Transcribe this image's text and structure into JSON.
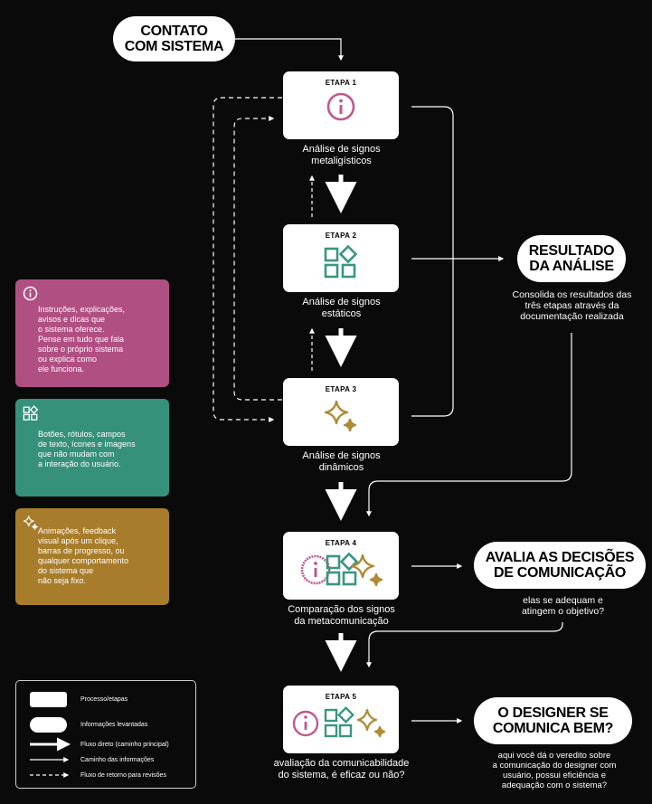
{
  "start": {
    "label": "CONTATO\nCOM SISTEMA"
  },
  "stages": [
    {
      "title": "ETAPA 1",
      "caption": "Análise de signos\nmetaligísticos",
      "icon": "info-icon"
    },
    {
      "title": "ETAPA 2",
      "caption": "Análise de signos\nestáticos",
      "icon": "shapes-icon"
    },
    {
      "title": "ETAPA 3",
      "caption": "Análise de signos\ndinâmicos",
      "icon": "sparkle-icon"
    },
    {
      "title": "ETAPA 4",
      "caption": "Comparação dos signos\nda metacomunicação",
      "icon": "combined-icons"
    },
    {
      "title": "ETAPA 5",
      "caption": "avaliação da  comunicabilidade\ndo sistema, é eficaz ou não?",
      "icon": "combined-icons"
    }
  ],
  "outcomes": {
    "resultado": {
      "label": "RESULTADO\nDA ANÁLISE",
      "note": "Consolida os resultados das\ntrês etapas através da\ndocumentação realizada"
    },
    "avalia": {
      "label": "AVALIA AS DECISÕES\nDE COMUNICAÇÃO",
      "note": "elas se adequam e\natingem o objetivo?"
    },
    "designer": {
      "label": "O DESIGNER SE\nCOMUNICA BEM?",
      "note": "aqui você dá o veredito sobre\na comunicação do designer com\nusuário, possui eficiência e\nadequação com o sistema?"
    }
  },
  "side_cards": [
    {
      "color": "#b04f82",
      "icon": "info-icon",
      "text": "Instruções, explicações,\navisos e dicas que\no sistema oferece.\nPense em tudo que fala\nsobre o próprio sistema\nou explica como\nele funciona."
    },
    {
      "color": "#35917a",
      "icon": "shapes-icon",
      "text": "Botões, rótulos, campos\nde texto, ícones e imagens\nque não mudam com\na interação do usuário."
    },
    {
      "color": "#a77d2c",
      "icon": "sparkle-icon",
      "text": "Animações, feedback\nvisual após um clique,\nbarras de progresso, ou\nqualquer comportamento\ndo sistema que\nnão seja fixo."
    }
  ],
  "legend": {
    "process": "Processo/etapas",
    "info": "Informações levantadas",
    "direct": "Fluxo direto (caminho principal)",
    "path": "Caminho das informações",
    "return": "Fluxo de retorno para revisões"
  },
  "colors": {
    "pink": "#c0588e",
    "teal": "#3a9680",
    "gold": "#b08a35",
    "white": "#ffffff",
    "background": "#0a0a0a"
  }
}
